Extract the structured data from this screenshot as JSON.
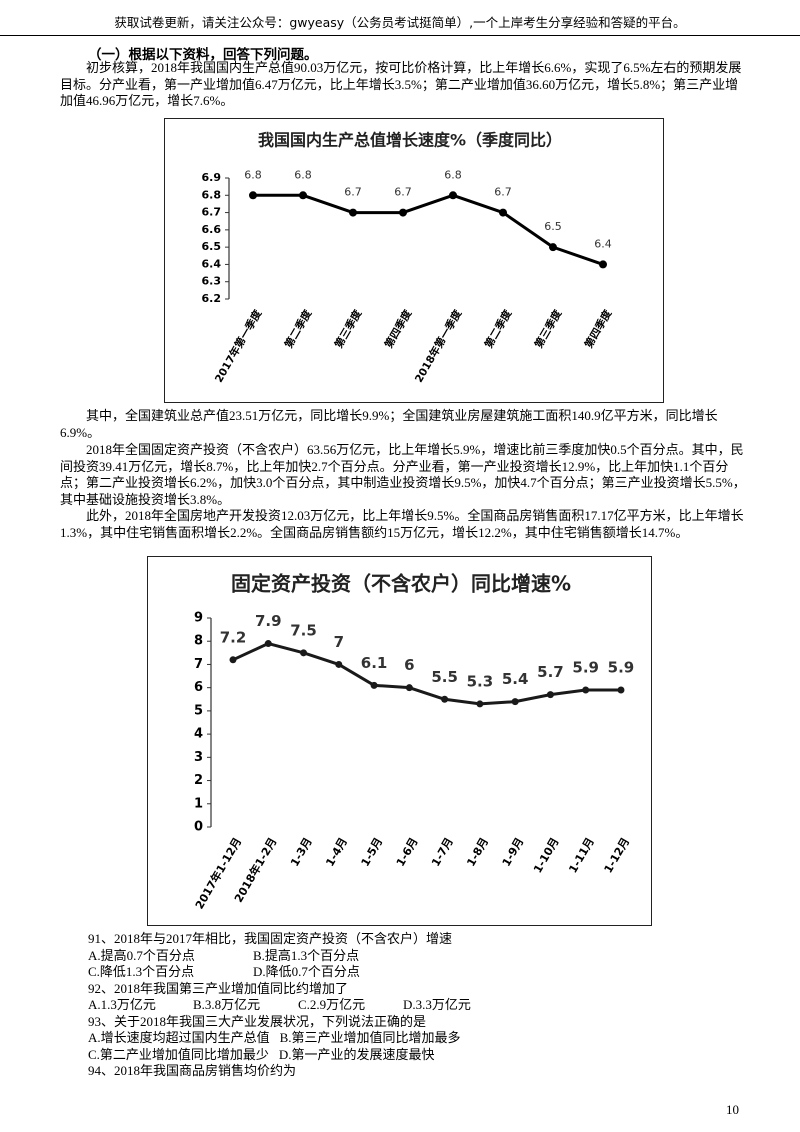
{
  "header": "获取试卷更新，请关注公众号：gwyeasy（公务员考试挺简单）,一个上岸考生分享经验和答疑的平台。",
  "section_title": "（一）根据以下资料，回答下列问题。",
  "paragraphs": [
    "初步核算，2018年我国国内生产总值90.03万亿元，按可比价格计算，比上年增长6.6%，实现了6.5%左右的预期发展目标。分产业看，第一产业增加值6.47万亿元，比上年增长3.5%；第二产业增加值36.60万亿元，增长5.8%；第三产业增加值46.96万亿元，增长7.6%。",
    "其中，全国建筑业总产值23.51万亿元，同比增长9.9%；全国建筑业房屋建筑施工面积140.9亿平方米，同比增长6.9%。",
    "2018年全国固定资产投资（不含农户）63.56万亿元，比上年增长5.9%，增速比前三季度加快0.5个百分点。其中，民间投资39.41万亿元，增长8.7%，比上年加快2.7个百分点。分产业看，第一产业投资增长12.9%，比上年加快1.1个百分点；第二产业投资增长6.2%，加快3.0个百分点，其中制造业投资增长9.5%，加快4.7个百分点；第三产业投资增长5.5%，其中基础设施投资增长3.8%。",
    "此外，2018年全国房地产开发投资12.03万亿元，比上年增长9.5%。全国商品房销售面积17.17亿平方米，比上年增长1.3%，其中住宅销售面积增长2.2%。全国商品房销售额约15万亿元，增长12.2%，其中住宅销售额增长14.7%。"
  ],
  "chart_data": [
    {
      "type": "line",
      "title": "我国国内生产总值增长速度%（季度同比）",
      "categories": [
        "2017年第一季度",
        "第二季度",
        "第三季度",
        "第四季度",
        "2018年第一季度",
        "第二季度",
        "第三季度",
        "第四季度"
      ],
      "values": [
        6.8,
        6.8,
        6.7,
        6.7,
        6.8,
        6.7,
        6.5,
        6.4
      ],
      "color": "#000000",
      "ylim": [
        6.2,
        6.9
      ],
      "yticks": [
        6.2,
        6.3,
        6.4,
        6.5,
        6.6,
        6.7,
        6.8,
        6.9
      ]
    },
    {
      "type": "line",
      "title": "固定资产投资（不含农户）同比增速%",
      "categories": [
        "2017年1-12月",
        "2018年1-2月",
        "1-3月",
        "1-4月",
        "1-5月",
        "1-6月",
        "1-7月",
        "1-8月",
        "1-9月",
        "1-10月",
        "1-11月",
        "1-12月"
      ],
      "values": [
        7.2,
        7.9,
        7.5,
        7,
        6.1,
        6,
        5.5,
        5.3,
        5.4,
        5.7,
        5.9,
        5.9
      ],
      "color": "#1a1a1a",
      "ylim": [
        0,
        9
      ],
      "yticks": [
        0,
        1,
        2,
        3,
        4,
        5,
        6,
        7,
        8,
        9
      ]
    }
  ],
  "questions": [
    {
      "stem": "91、2018年与2017年相比，我国固定资产投资（不含农户）增速",
      "options": [
        "A.提高0.7个百分点",
        "B.提高1.3个百分点",
        "C.降低1.3个百分点",
        "D.降低0.7个百分点"
      ]
    },
    {
      "stem": "92、2018年我国第三产业增加值同比约增加了",
      "options": [
        "A.1.3万亿元",
        "B.3.8万亿元",
        "C.2.9万亿元",
        "D.3.3万亿元"
      ]
    },
    {
      "stem": "93、关于2018年我国三大产业发展状况，下列说法正确的是",
      "options": [
        "A.增长速度均超过国内生产总值",
        "B.第三产业增加值同比增加最多",
        "C.第二产业增加值同比增加最少",
        "D.第一产业的发展速度最快"
      ]
    },
    {
      "stem": "94、2018年我国商品房销售均价约为",
      "options": []
    }
  ],
  "page_number": "10"
}
